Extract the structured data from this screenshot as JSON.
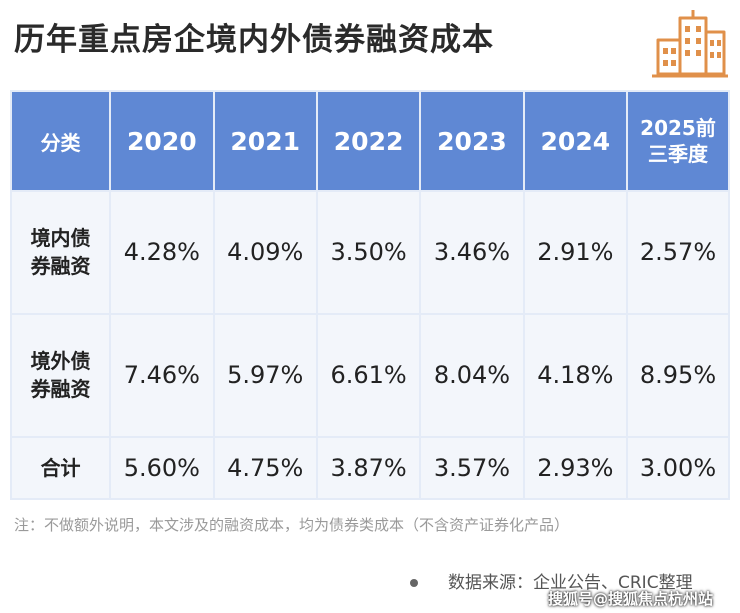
{
  "title": "历年重点房企境内外债券融资成本",
  "logo_icon": "city-buildings-icon",
  "colors": {
    "header_bg": "#5f88d4",
    "cell_bg": "#f3f6fb",
    "accent_logo": "#e0904a"
  },
  "chart_data": {
    "type": "table",
    "columns": [
      "分类",
      "2020",
      "2021",
      "2022",
      "2023",
      "2024",
      "2025前\n三季度"
    ],
    "rows": [
      {
        "label": "境内债\n券融资",
        "values": [
          "4.28%",
          "4.09%",
          "3.50%",
          "3.46%",
          "2.91%",
          "2.57%"
        ]
      },
      {
        "label": "境外债\n券融资",
        "values": [
          "7.46%",
          "5.97%",
          "6.61%",
          "8.04%",
          "4.18%",
          "8.95%"
        ]
      },
      {
        "label": "合计",
        "values": [
          "5.60%",
          "4.75%",
          "3.87%",
          "3.57%",
          "2.93%",
          "3.00%"
        ]
      }
    ]
  },
  "note": "注：不做额外说明，本文涉及的融资成本，均为债券类成本（不含资产证券化产品）",
  "source": "数据来源：企业公告、CRIC整理",
  "watermark": "搜狐号@搜狐焦点杭州站"
}
